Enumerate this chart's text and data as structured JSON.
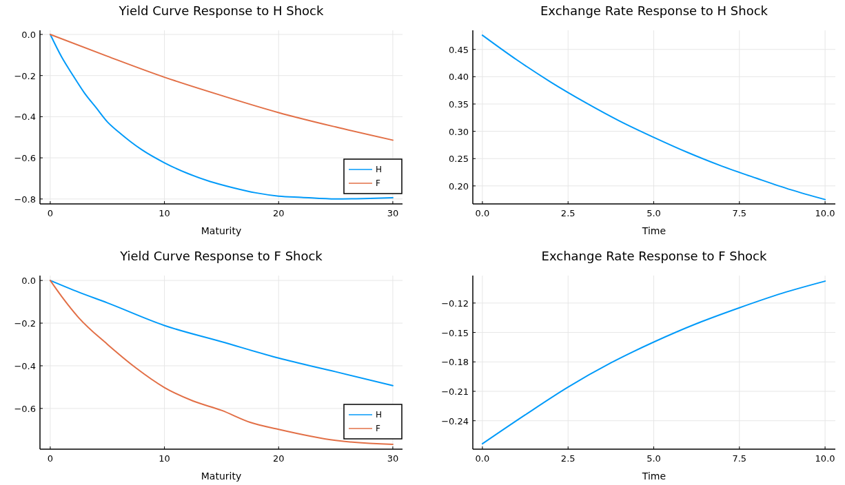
{
  "chart_data": [
    {
      "type": "line",
      "title": "Yield Curve Response to H Shock",
      "xlabel": "Maturity",
      "xlim": [
        -0.9,
        30.85
      ],
      "xticks": [
        0,
        10,
        20,
        30
      ],
      "ylim": [
        -0.824,
        0.02
      ],
      "yticks": [
        {
          "value": 0,
          "label": "0.0"
        },
        {
          "value": -0.2,
          "label": "−0.2"
        },
        {
          "value": -0.4,
          "label": "−0.4"
        },
        {
          "value": -0.6,
          "label": "−0.6"
        },
        {
          "value": -0.8,
          "label": "−0.8"
        }
      ],
      "grid": true,
      "legend": "bottom right",
      "series": [
        {
          "name": "H",
          "color": "#009af9",
          "x": [
            0,
            1,
            2,
            3,
            4,
            5,
            6,
            7,
            8,
            10,
            12,
            14,
            16,
            18,
            20,
            22,
            25,
            28,
            30
          ],
          "values": [
            0,
            -0.11,
            -0.2,
            -0.285,
            -0.355,
            -0.425,
            -0.475,
            -0.52,
            -0.56,
            -0.624,
            -0.675,
            -0.715,
            -0.745,
            -0.77,
            -0.786,
            -0.792,
            -0.8,
            -0.797,
            -0.794
          ]
        },
        {
          "name": "F",
          "color": "#e26f46",
          "x": [
            0,
            5,
            10,
            15,
            20,
            25,
            30
          ],
          "values": [
            0,
            -0.106,
            -0.208,
            -0.297,
            -0.38,
            -0.45,
            -0.514
          ]
        }
      ]
    },
    {
      "type": "line",
      "title": "Exchange Rate Response to H Shock",
      "xlabel": "Time",
      "xlim": [
        -0.28,
        10.3
      ],
      "xticks": [
        {
          "value": 0,
          "label": "0.0"
        },
        2.5,
        {
          "value": 5,
          "label": "5.0"
        },
        7.5,
        {
          "value": 10,
          "label": "10.0"
        }
      ],
      "ylim": [
        0.167,
        0.485
      ],
      "yticks": [
        {
          "value": 0.2,
          "label": "0.20"
        },
        0.25,
        {
          "value": 0.3,
          "label": "0.30"
        },
        0.35,
        {
          "value": 0.4,
          "label": "0.40"
        },
        0.45
      ],
      "grid": true,
      "series": [
        {
          "color": "#009af9",
          "x": [
            0,
            1,
            2,
            3,
            4,
            5,
            6,
            7,
            8,
            9,
            10
          ],
          "values": [
            0.476,
            0.431,
            0.39,
            0.353,
            0.319,
            0.289,
            0.261,
            0.236,
            0.214,
            0.193,
            0.175
          ]
        }
      ]
    },
    {
      "type": "line",
      "title": "Yield Curve Response to F Shock",
      "xlabel": "Maturity",
      "xlim": [
        -0.9,
        30.85
      ],
      "xticks": [
        0,
        10,
        20,
        30
      ],
      "ylim": [
        -0.791,
        0.023
      ],
      "yticks": [
        {
          "value": 0,
          "label": "0.0"
        },
        {
          "value": -0.2,
          "label": "−0.2"
        },
        {
          "value": -0.4,
          "label": "−0.4"
        },
        {
          "value": -0.6,
          "label": "−0.6"
        }
      ],
      "grid": true,
      "legend": "bottom right",
      "series": [
        {
          "name": "H",
          "color": "#009af9",
          "x": [
            0,
            2.5,
            5,
            10,
            15,
            20,
            25,
            30
          ],
          "values": [
            0,
            -0.055,
            -0.105,
            -0.211,
            -0.287,
            -0.364,
            -0.428,
            -0.493
          ]
        },
        {
          "name": "F",
          "color": "#e26f46",
          "x": [
            0,
            1,
            2.5,
            5,
            7.5,
            10,
            12.5,
            15,
            17.5,
            20,
            25,
            30
          ],
          "values": [
            0,
            -0.075,
            -0.175,
            -0.299,
            -0.41,
            -0.502,
            -0.565,
            -0.609,
            -0.665,
            -0.698,
            -0.75,
            -0.768
          ]
        }
      ]
    },
    {
      "type": "line",
      "title": "Exchange Rate Response to F Shock",
      "xlabel": "Time",
      "xlim": [
        -0.28,
        10.3
      ],
      "xticks": [
        {
          "value": 0,
          "label": "0.0"
        },
        2.5,
        {
          "value": 5,
          "label": "5.0"
        },
        7.5,
        {
          "value": 10,
          "label": "10.0"
        }
      ],
      "ylim": [
        -0.269,
        -0.092
      ],
      "yticks": [
        {
          "value": -0.24,
          "label": "−0.24"
        },
        {
          "value": -0.21,
          "label": "−0.21"
        },
        {
          "value": -0.18,
          "label": "−0.18"
        },
        {
          "value": -0.15,
          "label": "−0.15"
        },
        {
          "value": -0.12,
          "label": "−0.12"
        }
      ],
      "grid": true,
      "series": [
        {
          "color": "#009af9",
          "x": [
            0,
            1.25,
            2.5,
            3.75,
            5,
            6.25,
            7.5,
            8.75,
            10
          ],
          "values": [
            -0.2635,
            -0.234,
            -0.2057,
            -0.181,
            -0.1598,
            -0.141,
            -0.1248,
            -0.11,
            -0.0977
          ]
        }
      ]
    }
  ]
}
